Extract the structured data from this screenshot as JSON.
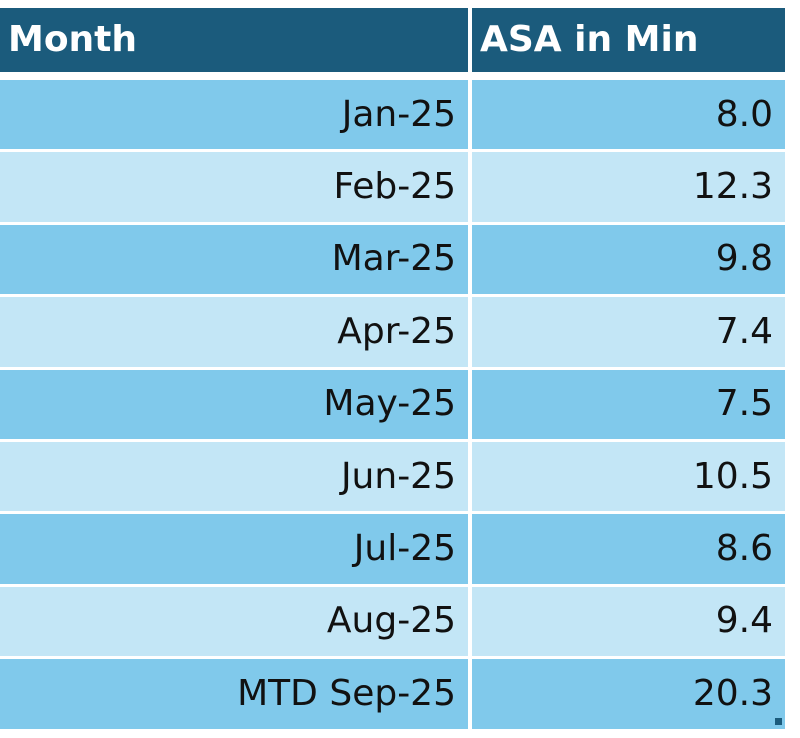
{
  "table": {
    "header": [
      "Month",
      "ASA in Min"
    ],
    "rows": [
      [
        "Jan-25",
        "8.0"
      ],
      [
        "Feb-25",
        "12.3"
      ],
      [
        "Mar-25",
        "9.8"
      ],
      [
        "Apr-25",
        "7.4"
      ],
      [
        "May-25",
        "7.5"
      ],
      [
        "Jun-25",
        "10.5"
      ],
      [
        "Jul-25",
        "8.6"
      ],
      [
        "Aug-25",
        "9.4"
      ],
      [
        "MTD Sep-25",
        "20.3"
      ]
    ]
  }
}
